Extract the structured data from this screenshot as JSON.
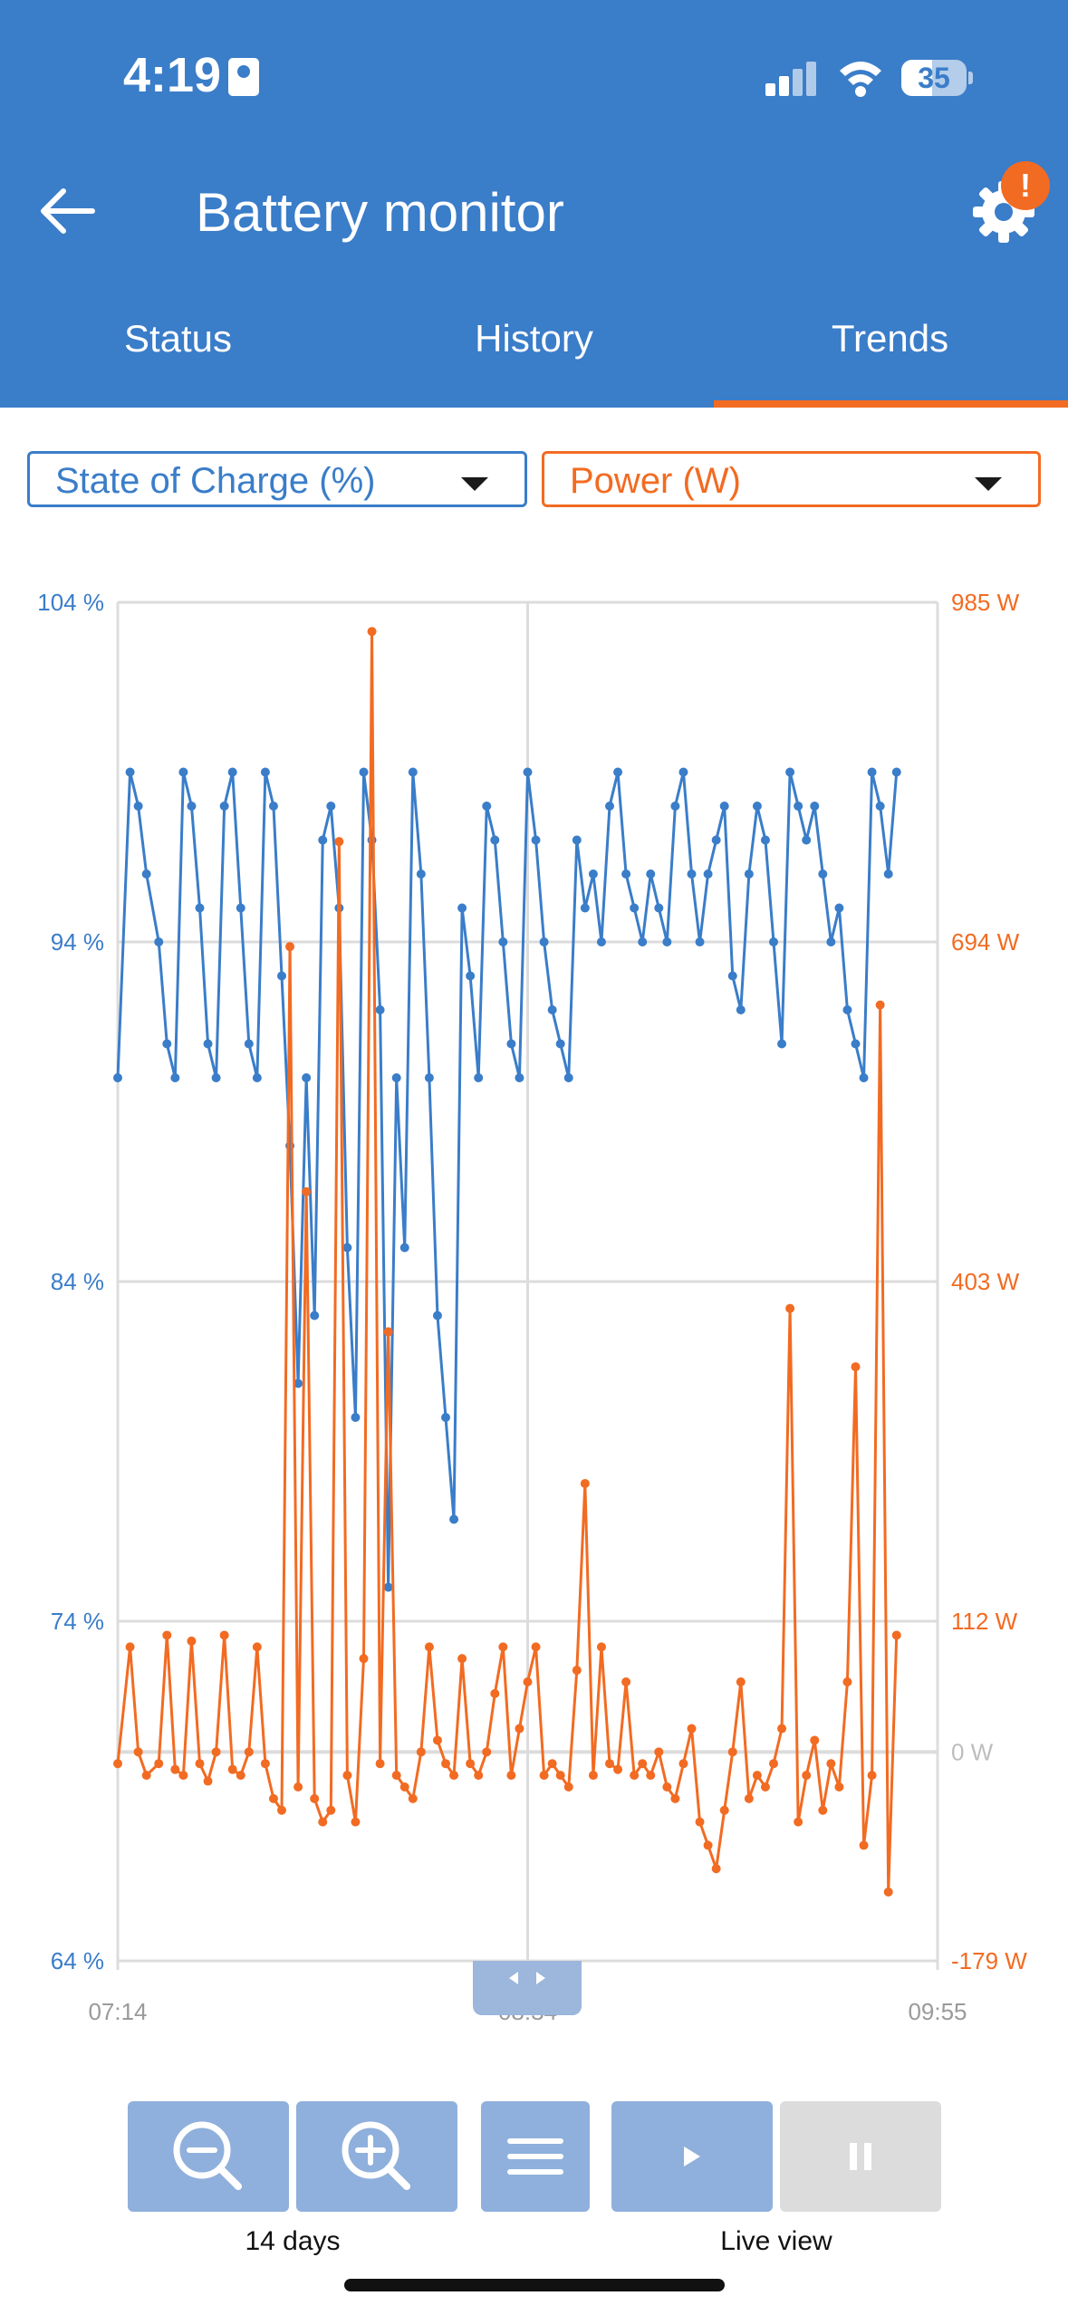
{
  "status_bar": {
    "time": "4:19",
    "battery_level": "35"
  },
  "header": {
    "title": "Battery monitor",
    "settings_badge": "!",
    "colors": {
      "header_bg": "#3a7dc9",
      "accent": "#f26b22"
    }
  },
  "tabs": [
    {
      "label": "Status"
    },
    {
      "label": "History"
    },
    {
      "label": "Trends",
      "selected": true
    }
  ],
  "selectors": {
    "left": "State of Charge (%)",
    "right": "Power (W)"
  },
  "controls": {
    "zoom_label": "14 days",
    "live_label": "Live view"
  },
  "icons": [
    "back-arrow-icon",
    "gear-icon",
    "zoom-out-icon",
    "zoom-in-icon",
    "menu-icon",
    "play-icon",
    "pause-icon",
    "wifi-icon",
    "signal-icon"
  ],
  "chart_data": {
    "type": "line",
    "left_axis": {
      "ticks": [
        "104 %",
        "94 %",
        "84 %",
        "74 %",
        "64 %"
      ],
      "range": [
        64,
        104
      ],
      "color": "#3a7dc9"
    },
    "right_axis": {
      "ticks": [
        "985 W",
        "694 W",
        "403 W",
        "112 W",
        "0 W",
        "-179 W"
      ],
      "tick_values": [
        985,
        694,
        403,
        112,
        0,
        -179
      ],
      "range": [
        -179,
        985
      ],
      "color": "#f26b22"
    },
    "x_ticks": [
      "07:14",
      "08:34",
      "09:55"
    ],
    "grid": true,
    "series": [
      {
        "axis": "left",
        "color": "#3a7dc9",
        "x": [
          0,
          1.5,
          2.5,
          3.5,
          5,
          6,
          7,
          8,
          9,
          10,
          11,
          12,
          13,
          14,
          15,
          16,
          17,
          18,
          19,
          20,
          21,
          22,
          23,
          24,
          25,
          26,
          27,
          28,
          29,
          30,
          31,
          32,
          33,
          34,
          35,
          36,
          37,
          38,
          39,
          40,
          41,
          42,
          43,
          44,
          45,
          46,
          47,
          48,
          49,
          50,
          51,
          52,
          53,
          54,
          55,
          56,
          57,
          58,
          59,
          60,
          61,
          62,
          63,
          64,
          65,
          66,
          67,
          68,
          69,
          70,
          71,
          72,
          73,
          74,
          75,
          76,
          77,
          78,
          79,
          80,
          81,
          82,
          83,
          84,
          85,
          86,
          87,
          88,
          89,
          90,
          91,
          92,
          93,
          94,
          95
        ],
        "values": [
          90,
          99,
          98,
          96,
          94,
          91,
          90,
          99,
          98,
          95,
          91,
          90,
          98,
          99,
          95,
          91,
          90,
          99,
          98,
          93,
          88,
          81,
          90,
          83,
          97,
          98,
          95,
          85,
          80,
          99,
          97,
          92,
          75,
          90,
          85,
          99,
          96,
          90,
          83,
          80,
          77,
          95,
          93,
          90,
          98,
          97,
          94,
          91,
          90,
          99,
          97,
          94,
          92,
          91,
          90,
          97,
          95,
          96,
          94,
          98,
          99,
          96,
          95,
          94,
          96,
          95,
          94,
          98,
          99,
          96,
          94,
          96,
          97,
          98,
          93,
          92,
          96,
          98,
          97,
          94,
          91,
          99,
          98,
          97,
          98,
          96,
          94,
          95,
          92,
          91,
          90,
          99,
          98,
          96,
          99
        ]
      },
      {
        "axis": "right",
        "color": "#f26b22",
        "x": [
          0,
          1.5,
          2.5,
          3.5,
          5,
          6,
          7,
          8,
          9,
          10,
          11,
          12,
          13,
          14,
          15,
          16,
          17,
          18,
          19,
          20,
          21,
          22,
          23,
          24,
          25,
          26,
          27,
          28,
          29,
          30,
          31,
          32,
          33,
          34,
          35,
          36,
          37,
          38,
          39,
          40,
          41,
          42,
          43,
          44,
          45,
          46,
          47,
          48,
          49,
          50,
          51,
          52,
          53,
          54,
          55,
          56,
          57,
          58,
          59,
          60,
          61,
          62,
          63,
          64,
          65,
          66,
          67,
          68,
          69,
          70,
          71,
          72,
          73,
          74,
          75,
          76,
          77,
          78,
          79,
          80,
          81,
          82,
          83,
          84,
          85,
          86,
          87,
          88,
          89,
          90,
          91,
          92,
          93,
          94,
          95
        ],
        "values": [
          -10,
          90,
          0,
          -20,
          -10,
          100,
          -15,
          -20,
          95,
          -10,
          -25,
          0,
          100,
          -15,
          -20,
          0,
          90,
          -10,
          -40,
          -50,
          690,
          -30,
          480,
          -40,
          -60,
          -50,
          780,
          -20,
          -60,
          80,
          960,
          -10,
          360,
          -20,
          -30,
          -40,
          0,
          90,
          10,
          -10,
          -20,
          80,
          -10,
          -20,
          0,
          50,
          90,
          -20,
          20,
          60,
          90,
          -20,
          -10,
          -20,
          -30,
          70,
          230,
          -20,
          90,
          -10,
          -15,
          60,
          -20,
          -10,
          -20,
          0,
          -30,
          -40,
          -10,
          20,
          -60,
          -80,
          -100,
          -50,
          0,
          60,
          -40,
          -20,
          -30,
          -10,
          20,
          380,
          -60,
          -20,
          10,
          -50,
          -10,
          -30,
          60,
          330,
          -80,
          -20,
          640,
          -120,
          100
        ]
      }
    ]
  }
}
